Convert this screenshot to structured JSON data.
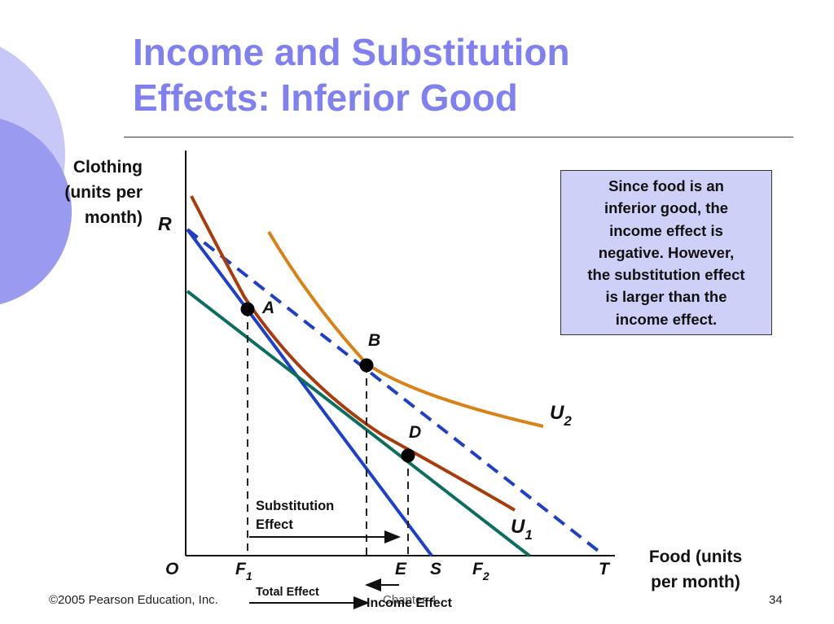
{
  "title": {
    "line1": "Income and Substitution",
    "line2": "Effects: Inferior Good"
  },
  "axes": {
    "y_label_lines": [
      "Clothing",
      "(units per",
      "month)"
    ],
    "x_label_lines": [
      "Food (units",
      "per month)"
    ]
  },
  "points": {
    "origin": "O",
    "R": "R",
    "T": "T",
    "S": "S",
    "A": "A",
    "B": "B",
    "D": "D",
    "F1_main": "F",
    "F1_sub": "1",
    "F2_main": "F",
    "F2_sub": "2",
    "E": "E"
  },
  "curves": {
    "U1_main": "U",
    "U1_sub": "1",
    "U2_main": "U",
    "U2_sub": "2"
  },
  "annotations": {
    "substitution_lines": [
      "Substitution",
      "Effect"
    ],
    "total_effect": "Total Effect",
    "income_effect": "Income Effect"
  },
  "callout_lines": [
    "Since food is an",
    "inferior good, the",
    "income effect is",
    "negative. However,",
    "the substitution effect",
    "is larger than the",
    "income effect."
  ],
  "footer": {
    "copyright": "©2005 Pearson Education, Inc.",
    "chapter": "Chapter 4",
    "page": "34"
  },
  "colors": {
    "title": "#8080f0",
    "deco_circle": "#c8c8f8",
    "deco_circle_dark": "#9a9af0",
    "budget_initial": "#1e3fc8",
    "budget_new_dashed": "#1e3fc8",
    "budget_compensated": "#0b6e5e",
    "U1": "#a83c0c",
    "U2": "#d98218",
    "callout_bg": "#cfd0f7"
  }
}
